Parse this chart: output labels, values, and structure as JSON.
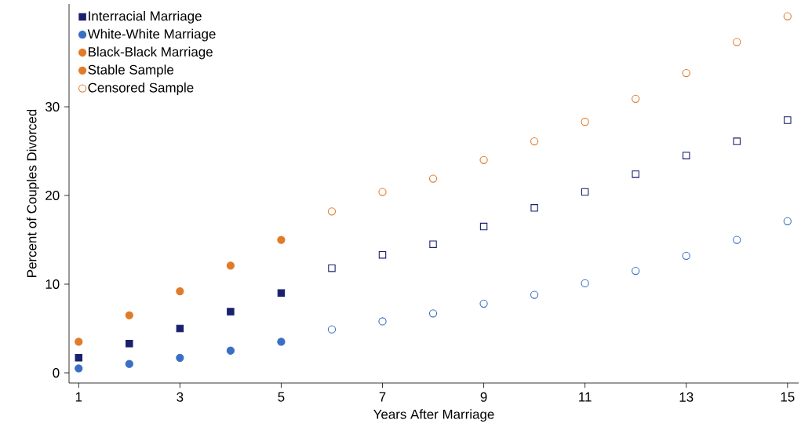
{
  "chart_data": {
    "type": "scatter",
    "xlabel": "Years After Marriage",
    "ylabel": "Percent of Couples Divorced",
    "xlim": [
      0.81,
      15.22
    ],
    "ylim": [
      -1.15,
      41.6
    ],
    "xticks": [
      1,
      3,
      5,
      7,
      9,
      11,
      13,
      15
    ],
    "yticks": [
      0,
      10,
      20,
      30
    ],
    "grid": false,
    "legend": "top left",
    "annotations": [
      "Stable Sample"
    ],
    "series": [
      {
        "name": "Interracial Marriage",
        "color": "#1a1f6e",
        "marker": "square",
        "x": [
          1,
          2,
          3,
          4,
          5
        ],
        "values": [
          1.7,
          3.3,
          5.0,
          6.9,
          9.0
        ]
      },
      {
        "name": "White-White Marriage",
        "color": "#3a6fc4",
        "marker": "circle",
        "x": [
          1,
          2,
          3,
          4,
          5
        ],
        "values": [
          0.5,
          1.0,
          1.7,
          2.5,
          3.5
        ]
      },
      {
        "name": "Black-Black Marriage",
        "color": "#e07b2a",
        "marker": "circle",
        "x": [
          1,
          2,
          3,
          4,
          5
        ],
        "values": [
          3.5,
          6.5,
          9.2,
          12.1,
          15.0
        ]
      },
      {
        "color": "#1a1f6e",
        "marker": "square-open",
        "x": [
          6,
          7,
          8,
          9,
          10,
          11,
          12,
          13,
          14,
          15
        ],
        "values": [
          11.8,
          13.3,
          14.5,
          16.5,
          18.6,
          20.4,
          22.4,
          24.5,
          26.1,
          28.5
        ]
      },
      {
        "color": "#3a6fc4",
        "marker": "circle-open",
        "x": [
          6,
          7,
          8,
          9,
          10,
          11,
          12,
          13,
          14,
          15
        ],
        "values": [
          4.9,
          5.8,
          6.7,
          7.8,
          8.8,
          10.1,
          11.5,
          13.2,
          15.0,
          17.1
        ]
      },
      {
        "name": "Censored Sample",
        "color": "#e07b2a",
        "marker": "circle-open",
        "x": [
          6,
          7,
          8,
          9,
          10,
          11,
          12,
          13,
          14,
          15
        ],
        "values": [
          18.2,
          20.4,
          21.9,
          24.0,
          26.1,
          28.3,
          30.9,
          33.8,
          37.3,
          40.2
        ]
      }
    ]
  }
}
